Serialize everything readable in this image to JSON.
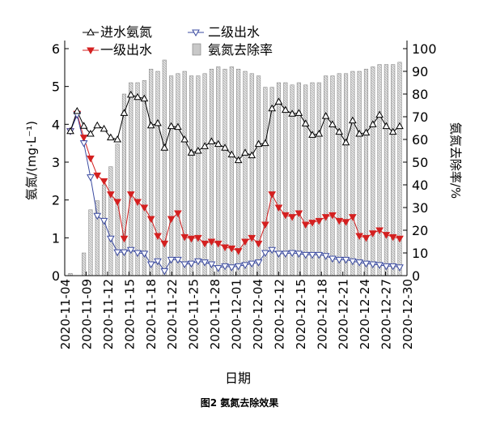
{
  "chart_data": {
    "type": "bar+line",
    "caption": "图2  氨氮去除效果",
    "xlabel": "日期",
    "ylabel_left": "氨氮/(mg·L⁻¹)",
    "ylabel_right": "氨氮去除率/%",
    "ylim_left": [
      0,
      6
    ],
    "ylim_right": [
      0,
      100
    ],
    "left_ticks": [
      "0",
      "1",
      "2",
      "3",
      "4",
      "5",
      "6"
    ],
    "right_ticks": [
      "0",
      "10",
      "20",
      "30",
      "40",
      "50",
      "60",
      "70",
      "80",
      "90",
      "100"
    ],
    "x_tick_labels": [
      "2020-11-04",
      "2020-11-09",
      "2020-11-12",
      "2020-11-15",
      "2020-11-18",
      "2020-11-22",
      "2020-11-25",
      "2020-11-28",
      "2020-12-01",
      "2020-12-04",
      "2020-12-12",
      "2020-12-15",
      "2020-12-18",
      "2020-12-21",
      "2020-12-24",
      "2020-12-27",
      "2020-12-30"
    ],
    "legend": {
      "influent": "进水氨氮",
      "secondary": "二级出水",
      "primary": "一级出水",
      "removal": "氨氮去除率"
    },
    "colors": {
      "influent": "#000000",
      "secondary": "#3a4aa0",
      "primary": "#d42020",
      "bar": "#c8c8c8",
      "bar_edge": "#7a7a7a"
    },
    "grid": false,
    "series": {
      "influent": [
        3.82,
        4.35,
        3.96,
        3.75,
        3.97,
        3.88,
        3.65,
        3.6,
        4.3,
        4.78,
        4.72,
        4.68,
        3.97,
        4.03,
        3.38,
        3.95,
        3.93,
        3.6,
        3.25,
        3.3,
        3.42,
        3.55,
        3.48,
        3.38,
        3.2,
        3.05,
        3.25,
        3.18,
        3.48,
        3.5,
        4.42,
        4.6,
        4.38,
        4.28,
        4.3,
        4.02,
        3.72,
        3.75,
        4.22,
        4.0,
        3.8,
        3.52,
        4.1,
        3.75,
        3.78,
        4.0,
        4.25,
        3.95,
        3.8,
        3.95
      ],
      "secondary": [
        3.82,
        4.25,
        3.5,
        2.6,
        1.58,
        1.45,
        0.98,
        0.62,
        0.62,
        0.68,
        0.6,
        0.58,
        0.3,
        0.38,
        0.12,
        0.42,
        0.42,
        0.3,
        0.32,
        0.38,
        0.35,
        0.3,
        0.2,
        0.25,
        0.22,
        0.25,
        0.28,
        0.32,
        0.35,
        0.6,
        0.68,
        0.58,
        0.58,
        0.6,
        0.58,
        0.55,
        0.55,
        0.55,
        0.52,
        0.45,
        0.42,
        0.42,
        0.38,
        0.35,
        0.32,
        0.3,
        0.28,
        0.25,
        0.25,
        0.22
      ],
      "primary": [
        3.82,
        4.28,
        3.65,
        3.1,
        2.65,
        2.5,
        2.15,
        1.95,
        0.98,
        2.15,
        1.95,
        1.8,
        1.5,
        1.05,
        0.85,
        1.5,
        1.65,
        1.02,
        0.98,
        1.0,
        0.85,
        0.9,
        0.85,
        0.75,
        0.72,
        0.65,
        0.9,
        1.0,
        0.85,
        1.35,
        2.15,
        1.8,
        1.6,
        1.55,
        1.65,
        1.35,
        1.4,
        1.45,
        1.55,
        1.6,
        1.45,
        1.42,
        1.55,
        1.05,
        1.0,
        1.12,
        1.2,
        1.08,
        1.02,
        0.98
      ],
      "removal": [
        1,
        0,
        10,
        29,
        33,
        40,
        48,
        58,
        80,
        85,
        85,
        86,
        91,
        90,
        95,
        88,
        89,
        90,
        88,
        88,
        89,
        91,
        92,
        91,
        92,
        91,
        90,
        89,
        88,
        83,
        83,
        85,
        85,
        84,
        85,
        84,
        85,
        85,
        88,
        88,
        89,
        89,
        90,
        90,
        91,
        92,
        93,
        93,
        93,
        94
      ]
    }
  }
}
